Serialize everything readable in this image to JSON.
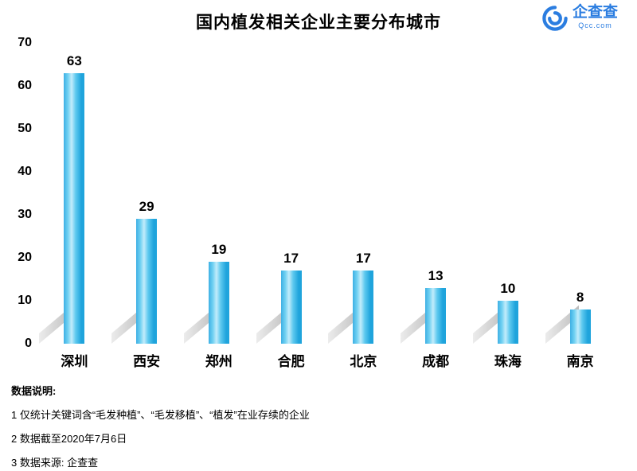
{
  "title": "国内植发相关企业主要分布城市",
  "logo": {
    "brand": "企查查",
    "domain": "Qcc.com",
    "color": "#2b7de0"
  },
  "chart_data": {
    "type": "bar",
    "title": "国内植发相关企业主要分布城市",
    "categories": [
      "深圳",
      "西安",
      "郑州",
      "合肥",
      "北京",
      "成都",
      "珠海",
      "南京"
    ],
    "values": [
      63,
      29,
      19,
      17,
      17,
      13,
      10,
      8
    ],
    "xlabel": "",
    "ylabel": "",
    "ylim": [
      0,
      70
    ],
    "yticks": [
      0,
      10,
      20,
      30,
      40,
      50,
      60,
      70
    ],
    "grid": false,
    "legend": "none",
    "bar_colors": {
      "left": "#3eb0e4",
      "highlight": "#c2ecfb",
      "right": "#1fa4dc"
    },
    "shadow_color": "#bdbdbd"
  },
  "footer": {
    "heading": "数据说明:",
    "notes": [
      "1 仅统计关键词含“毛发种植”、“毛发移植”、“植发”在业存续的企业",
      "2 数据截至2020年7月6日",
      "3 数据来源: 企查查"
    ]
  }
}
